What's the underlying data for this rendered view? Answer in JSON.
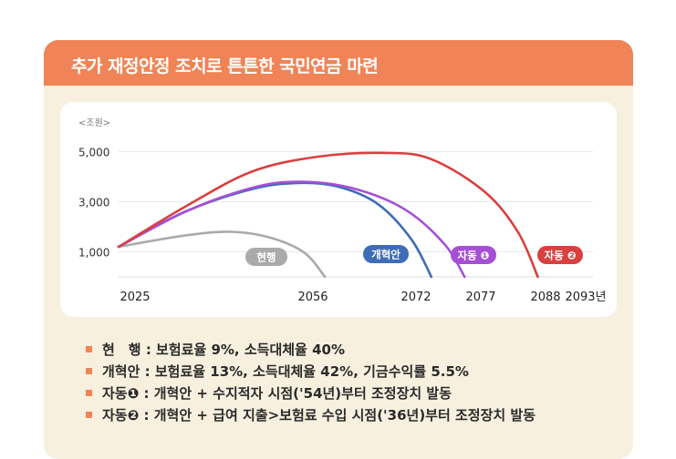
{
  "header": {
    "title": "추가 재정안정 조치로 튼튼한 국민연금 마련"
  },
  "colors": {
    "header": "#f08456",
    "current": "#aaaaaa",
    "reform": "#3f6db5",
    "auto1": "#a54fd6",
    "auto2": "#d94040"
  },
  "chart_data": {
    "type": "line",
    "unit_label": "<조원>",
    "y_ticks": [
      "1,000",
      "3,000",
      "5,000"
    ],
    "x_ticks": [
      "2025",
      "2056",
      "2072",
      "2077",
      "2088",
      "2093년"
    ],
    "ylim": [
      0,
      5600
    ],
    "series": [
      {
        "name": "현행",
        "color": "current",
        "points": [
          [
            2025,
            1200
          ],
          [
            2035,
            1650
          ],
          [
            2042,
            1800
          ],
          [
            2048,
            1550
          ],
          [
            2053,
            950
          ],
          [
            2056,
            0
          ]
        ]
      },
      {
        "name": "개혁안",
        "color": "reform",
        "points": [
          [
            2025,
            1200
          ],
          [
            2035,
            2600
          ],
          [
            2045,
            3500
          ],
          [
            2052,
            3750
          ],
          [
            2058,
            3600
          ],
          [
            2064,
            2900
          ],
          [
            2069,
            1500
          ],
          [
            2072,
            0
          ]
        ]
      },
      {
        "name": "자동 ❶",
        "color": "auto1",
        "points": [
          [
            2025,
            1200
          ],
          [
            2035,
            2600
          ],
          [
            2045,
            3550
          ],
          [
            2052,
            3800
          ],
          [
            2060,
            3550
          ],
          [
            2068,
            2700
          ],
          [
            2074,
            1300
          ],
          [
            2077,
            0
          ]
        ]
      },
      {
        "name": "자동 ❷",
        "color": "auto2",
        "points": [
          [
            2025,
            1200
          ],
          [
            2035,
            2800
          ],
          [
            2045,
            4200
          ],
          [
            2055,
            4800
          ],
          [
            2065,
            4950
          ],
          [
            2072,
            4700
          ],
          [
            2080,
            3400
          ],
          [
            2085,
            1800
          ],
          [
            2088,
            0
          ]
        ]
      }
    ]
  },
  "notes": [
    {
      "label": "현　행 : 보험료율 9%, 소득대체율 40%"
    },
    {
      "label": "개혁안 : 보험료율 13%, 소득대체율 42%, 기금수익률 5.5%"
    },
    {
      "label": "자동❶ : 개혁안 + 수지적자 시점('54년)부터 조정장치 발동"
    },
    {
      "label": "자동❷ : 개혁안 + 급여 지출>보험료 수입 시점('36년)부터 조정장치 발동"
    }
  ]
}
